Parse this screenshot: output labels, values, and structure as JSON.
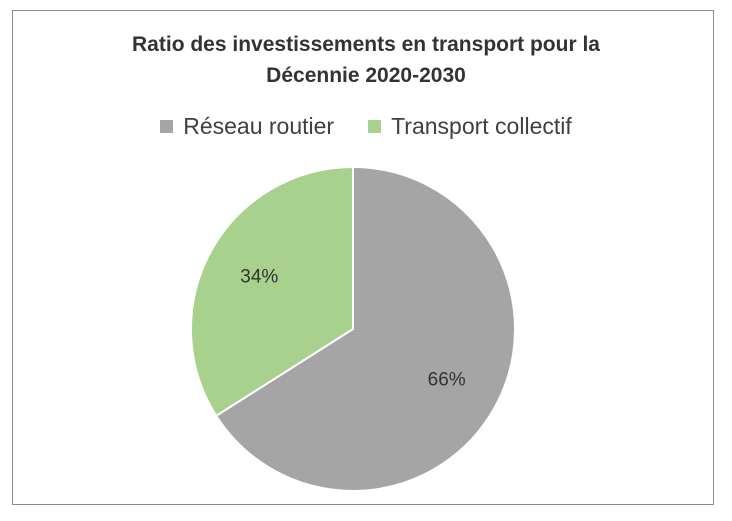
{
  "chart_data": {
    "type": "pie",
    "title_lines": [
      "Ratio des investissements en transport pour la",
      "Décennie 2020-2030"
    ],
    "slices": [
      {
        "name": "Réseau routier",
        "value": 66,
        "label": "66%",
        "color": "#a5a5a5"
      },
      {
        "name": "Transport collectif",
        "value": 34,
        "label": "34%",
        "color": "#a9d18e"
      }
    ],
    "start_angle": "12 o'clock",
    "direction": "clockwise",
    "legend_position": "top"
  }
}
